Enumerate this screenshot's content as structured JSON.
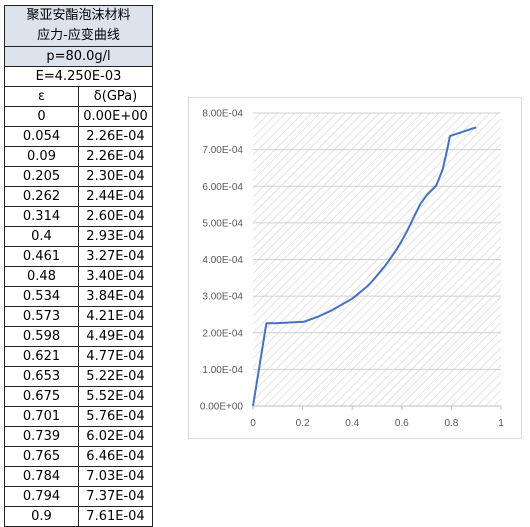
{
  "table": {
    "title": [
      "聚亚安酯泡沫材料",
      "应力-应变曲线"
    ],
    "density": "p=80.0g/l",
    "modulus": "E=4.250E-03",
    "header": [
      "ε",
      "δ(GPa)"
    ],
    "rows": [
      [
        "0",
        "0.00E+00"
      ],
      [
        "0.054",
        "2.26E-04"
      ],
      [
        "0.09",
        "2.26E-04"
      ],
      [
        "0.205",
        "2.30E-04"
      ],
      [
        "0.262",
        "2.44E-04"
      ],
      [
        "0.314",
        "2.60E-04"
      ],
      [
        "0.4",
        "2.93E-04"
      ],
      [
        "0.461",
        "3.27E-04"
      ],
      [
        "0.48",
        "3.40E-04"
      ],
      [
        "0.534",
        "3.84E-04"
      ],
      [
        "0.573",
        "4.21E-04"
      ],
      [
        "0.598",
        "4.49E-04"
      ],
      [
        "0.621",
        "4.77E-04"
      ],
      [
        "0.653",
        "5.22E-04"
      ],
      [
        "0.675",
        "5.52E-04"
      ],
      [
        "0.701",
        "5.76E-04"
      ],
      [
        "0.739",
        "6.02E-04"
      ],
      [
        "0.765",
        "6.46E-04"
      ],
      [
        "0.784",
        "7.03E-04"
      ],
      [
        "0.794",
        "7.37E-04"
      ],
      [
        "0.9",
        "7.61E-04"
      ]
    ]
  },
  "chart_data": {
    "type": "line",
    "x": [
      0,
      0.054,
      0.09,
      0.205,
      0.262,
      0.314,
      0.4,
      0.461,
      0.48,
      0.534,
      0.573,
      0.598,
      0.621,
      0.653,
      0.675,
      0.701,
      0.739,
      0.765,
      0.784,
      0.794,
      0.9
    ],
    "series": [
      {
        "color": "#4472c4",
        "values": [
          0,
          0.000226,
          0.000226,
          0.00023,
          0.000244,
          0.00026,
          0.000293,
          0.000327,
          0.00034,
          0.000384,
          0.000421,
          0.000449,
          0.000477,
          0.000522,
          0.000552,
          0.000576,
          0.000602,
          0.000646,
          0.000703,
          0.000737,
          0.000761
        ]
      }
    ],
    "xlim": [
      0,
      1
    ],
    "xticks": [
      0,
      0.2,
      0.4,
      0.6,
      0.8,
      1
    ],
    "ylim": [
      0,
      0.0008
    ],
    "yticks": [
      {
        "value": 0,
        "label": "0.00E+00"
      },
      {
        "value": 0.0001,
        "label": "1.00E-04"
      },
      {
        "value": 0.0002,
        "label": "2.00E-04"
      },
      {
        "value": 0.0003,
        "label": "3.00E-04"
      },
      {
        "value": 0.0004,
        "label": "4.00E-04"
      },
      {
        "value": 0.0005,
        "label": "5.00E-04"
      },
      {
        "value": 0.0006,
        "label": "6.00E-04"
      },
      {
        "value": 0.0007,
        "label": "7.00E-04"
      },
      {
        "value": 0.0008,
        "label": "8.00E-04"
      }
    ],
    "grid": true
  }
}
